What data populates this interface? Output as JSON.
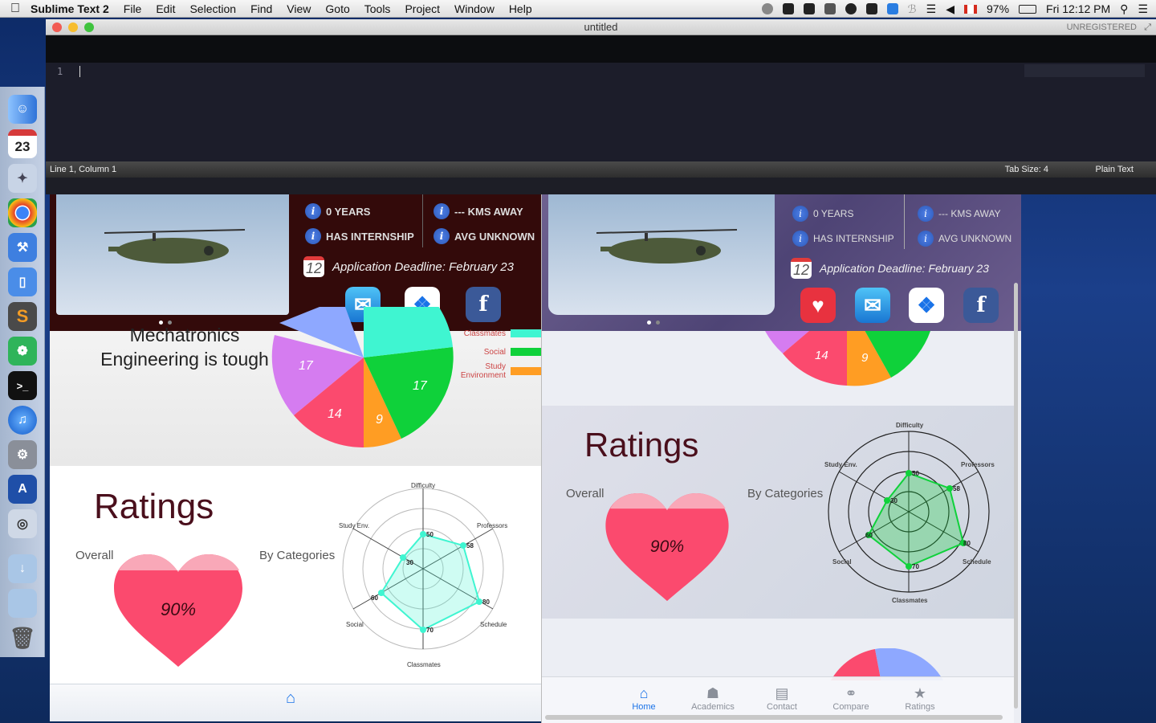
{
  "menubar": {
    "app_name": "Sublime Text 2",
    "menus": [
      "File",
      "Edit",
      "Selection",
      "Find",
      "View",
      "Goto",
      "Tools",
      "Project",
      "Window",
      "Help"
    ],
    "battery": "97%",
    "clock": "Fri 12:12 PM"
  },
  "dock": {
    "calendar_day": "23",
    "calendar_month": "MAY"
  },
  "sublime": {
    "title": "untitled",
    "registration": "UNREGISTERED",
    "line_number": "1",
    "status_position": "Line 1, Column 1",
    "tab_size": "Tab Size: 4",
    "syntax": "Plain Text"
  },
  "app_left": {
    "info_years": "0 YEARS",
    "info_distance": "--- KMS AWAY",
    "info_internship": "HAS INTERNSHIP",
    "info_avg": "AVG UNKNOWN",
    "deadline": "Application Deadline: February 23",
    "calendar_day": "12",
    "course_text_1": "Mechatronics",
    "course_text_2": "Engineering is tough",
    "legend": [
      "Classmates",
      "Social",
      "Study Environment"
    ],
    "legend_study_1": "Study",
    "legend_study_2": "Environment",
    "pie_labels": [
      "17",
      "17",
      "14",
      "9"
    ],
    "ratings_title": "Ratings",
    "overall_label": "Overall",
    "categories_label": "By Categories",
    "overall_value": "90%",
    "radar_axes": [
      "Difficulty",
      "Professors",
      "Schedule",
      "Classmates",
      "Social",
      "Study Env."
    ],
    "radar_values": [
      "50",
      "58",
      "80",
      "70",
      "60",
      "30"
    ]
  },
  "app_right": {
    "info_years": "0 YEARS",
    "info_distance": "--- KMS AWAY",
    "info_internship": "HAS INTERNSHIP",
    "info_avg": "AVG UNKNOWN",
    "deadline": "Application Deadline: February 23",
    "calendar_day": "12",
    "pie_labels": [
      "14",
      "9"
    ],
    "ratings_title": "Ratings",
    "overall_label": "Overall",
    "categories_label": "By Categories",
    "overall_value": "90%",
    "radar_axes": [
      "Difficulty",
      "Professors",
      "Schedule",
      "Classmates",
      "Social",
      "Study Env."
    ],
    "radar_values": [
      "50",
      "58",
      "80",
      "70",
      "60",
      "30"
    ],
    "tabs": [
      "Home",
      "Academics",
      "Contact",
      "Compare",
      "Ratings"
    ]
  },
  "colors": {
    "pie_green": "#0fd13a",
    "pie_red": "#fb4a6e",
    "pie_orange": "#ff9d23",
    "pie_purple": "#d57cf0",
    "pie_teal": "#3ff5d1",
    "heart": "#fb4a6e",
    "accent_blue": "#1a73e8"
  }
}
